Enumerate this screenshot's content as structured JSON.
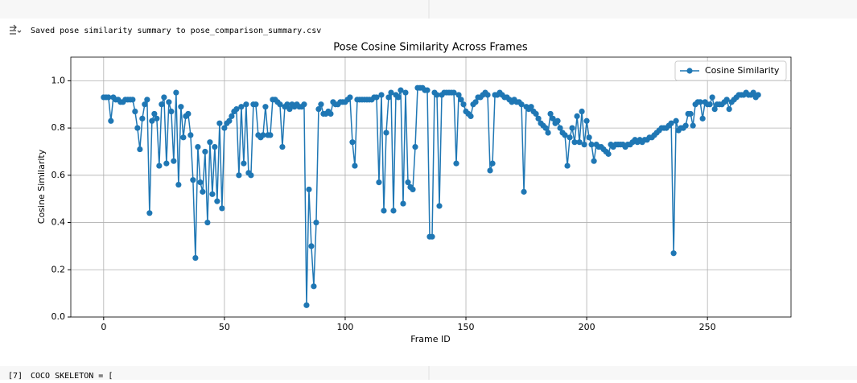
{
  "output_text": "Saved pose similarity summary to pose_comparison_summary.csv",
  "next_cell": {
    "prompt": "[7]",
    "code": "COCO_SKELETON = ["
  },
  "chart_data": {
    "type": "line",
    "title": "Pose Cosine Similarity Across Frames",
    "xlabel": "Frame ID",
    "ylabel": "Cosine Similarity",
    "x": [
      0,
      1,
      2,
      3,
      4,
      5,
      6,
      7,
      8,
      9,
      10,
      11,
      12,
      13,
      14,
      15,
      16,
      17,
      18,
      19,
      20,
      21,
      22,
      23,
      24,
      25,
      26,
      27,
      28,
      29,
      30,
      31,
      32,
      33,
      34,
      35,
      36,
      37,
      38,
      39,
      40,
      41,
      42,
      43,
      44,
      45,
      46,
      47,
      48,
      49,
      50,
      51,
      52,
      53,
      54,
      55,
      56,
      57,
      58,
      59,
      60,
      61,
      62,
      63,
      64,
      65,
      66,
      67,
      68,
      69,
      70,
      71,
      72,
      73,
      74,
      75,
      76,
      77,
      78,
      79,
      80,
      81,
      82,
      83,
      84,
      85,
      86,
      87,
      88,
      89,
      90,
      91,
      92,
      93,
      94,
      95,
      96,
      97,
      98,
      99,
      100,
      101,
      102,
      103,
      104,
      105,
      106,
      107,
      108,
      109,
      110,
      111,
      112,
      113,
      114,
      115,
      116,
      117,
      118,
      119,
      120,
      121,
      122,
      123,
      124,
      125,
      126,
      127,
      128,
      129,
      130,
      131,
      132,
      133,
      134,
      135,
      136,
      137,
      138,
      139,
      140,
      141,
      142,
      143,
      144,
      145,
      146,
      147,
      148,
      149,
      150,
      151,
      152,
      153,
      154,
      155,
      156,
      157,
      158,
      159,
      160,
      161,
      162,
      163,
      164,
      165,
      166,
      167,
      168,
      169,
      170,
      171,
      172,
      173,
      174,
      175,
      176,
      177,
      178,
      179,
      180,
      181,
      182,
      183,
      184,
      185,
      186,
      187,
      188,
      189,
      190,
      191,
      192,
      193,
      194,
      195,
      196,
      197,
      198,
      199,
      200,
      201,
      202,
      203,
      204,
      205,
      206,
      207,
      208,
      209,
      210,
      211,
      212,
      213,
      214,
      215,
      216,
      217,
      218,
      219,
      220,
      221,
      222,
      223,
      224,
      225,
      226,
      227,
      228,
      229,
      230,
      231,
      232,
      233,
      234,
      235,
      236,
      237,
      238,
      239,
      240,
      241,
      242,
      243,
      244,
      245,
      246,
      247,
      248,
      249,
      250,
      251,
      252,
      253,
      254,
      255,
      256,
      257,
      258,
      259,
      260,
      261,
      262,
      263,
      264,
      265,
      266,
      267,
      268,
      269,
      270,
      271
    ],
    "series": [
      {
        "name": "Cosine Similarity",
        "color": "#1f77b4",
        "values": [
          0.93,
          0.93,
          0.93,
          0.83,
          0.93,
          0.92,
          0.92,
          0.91,
          0.91,
          0.92,
          0.92,
          0.92,
          0.92,
          0.87,
          0.8,
          0.71,
          0.84,
          0.9,
          0.92,
          0.44,
          0.83,
          0.86,
          0.84,
          0.64,
          0.9,
          0.93,
          0.65,
          0.91,
          0.87,
          0.66,
          0.95,
          0.56,
          0.89,
          0.76,
          0.85,
          0.86,
          0.77,
          0.58,
          0.25,
          0.72,
          0.57,
          0.53,
          0.7,
          0.4,
          0.74,
          0.52,
          0.72,
          0.49,
          0.82,
          0.46,
          0.8,
          0.82,
          0.83,
          0.85,
          0.87,
          0.88,
          0.6,
          0.89,
          0.65,
          0.9,
          0.61,
          0.6,
          0.9,
          0.9,
          0.77,
          0.76,
          0.77,
          0.89,
          0.77,
          0.77,
          0.92,
          0.92,
          0.91,
          0.9,
          0.72,
          0.89,
          0.9,
          0.88,
          0.9,
          0.89,
          0.9,
          0.89,
          0.89,
          0.9,
          0.05,
          0.54,
          0.3,
          0.13,
          0.4,
          0.88,
          0.9,
          0.86,
          0.86,
          0.87,
          0.86,
          0.91,
          0.9,
          0.9,
          0.91,
          0.91,
          0.91,
          0.92,
          0.93,
          0.74,
          0.64,
          0.92,
          0.92,
          0.92,
          0.92,
          0.92,
          0.92,
          0.92,
          0.93,
          0.93,
          0.57,
          0.94,
          0.45,
          0.78,
          0.93,
          0.95,
          0.45,
          0.94,
          0.93,
          0.96,
          0.48,
          0.95,
          0.57,
          0.55,
          0.54,
          0.72,
          0.97,
          0.97,
          0.97,
          0.96,
          0.96,
          0.34,
          0.34,
          0.95,
          0.94,
          0.47,
          0.94,
          0.95,
          0.95,
          0.95,
          0.95,
          0.95,
          0.65,
          0.94,
          0.92,
          0.9,
          0.87,
          0.86,
          0.85,
          0.9,
          0.91,
          0.93,
          0.93,
          0.94,
          0.95,
          0.94,
          0.62,
          0.65,
          0.94,
          0.94,
          0.95,
          0.94,
          0.93,
          0.93,
          0.92,
          0.91,
          0.92,
          0.91,
          0.91,
          0.9,
          0.53,
          0.89,
          0.88,
          0.89,
          0.87,
          0.86,
          0.84,
          0.82,
          0.81,
          0.8,
          0.78,
          0.86,
          0.84,
          0.82,
          0.83,
          0.8,
          0.78,
          0.77,
          0.64,
          0.76,
          0.8,
          0.74,
          0.85,
          0.74,
          0.87,
          0.73,
          0.83,
          0.76,
          0.73,
          0.66,
          0.73,
          0.72,
          0.72,
          0.71,
          0.7,
          0.69,
          0.73,
          0.72,
          0.73,
          0.73,
          0.73,
          0.73,
          0.72,
          0.73,
          0.73,
          0.74,
          0.75,
          0.74,
          0.75,
          0.74,
          0.75,
          0.75,
          0.76,
          0.76,
          0.77,
          0.78,
          0.79,
          0.8,
          0.8,
          0.8,
          0.81,
          0.82,
          0.27,
          0.83,
          0.79,
          0.8,
          0.8,
          0.81,
          0.86,
          0.86,
          0.81,
          0.9,
          0.91,
          0.91,
          0.84,
          0.91,
          0.9,
          0.9,
          0.93,
          0.88,
          0.9,
          0.9,
          0.9,
          0.91,
          0.92,
          0.88,
          0.91,
          0.92,
          0.93,
          0.94,
          0.94,
          0.94,
          0.95,
          0.94,
          0.94,
          0.95,
          0.93,
          0.94
        ]
      }
    ],
    "xlim": [
      -13.6,
      284.6
    ],
    "xticks": [
      0,
      50,
      100,
      150,
      200,
      250
    ],
    "ylim": [
      0,
      1.1
    ],
    "yticks": [
      {
        "value": 0,
        "label": "0.0"
      },
      0.2,
      0.4,
      0.6,
      0.8,
      {
        "value": 1,
        "label": "1.0"
      }
    ],
    "grid": true,
    "legend": "upper right"
  }
}
